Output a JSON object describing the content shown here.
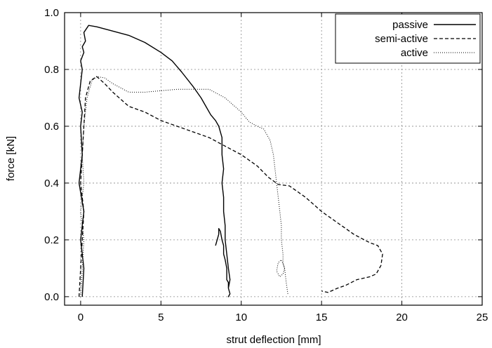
{
  "chart_data": {
    "type": "line",
    "title": "",
    "xlabel": "strut deflection [mm]",
    "ylabel": "force [kN]",
    "xlim": [
      -1,
      25
    ],
    "ylim": [
      -0.03,
      1.0
    ],
    "xticks": [
      0,
      5,
      10,
      15,
      20,
      25
    ],
    "yticks": [
      0.0,
      0.2,
      0.4,
      0.6,
      0.8,
      1.0
    ],
    "ytick_labels": [
      "0.0",
      "0.2",
      "0.4",
      "0.6",
      "0.8",
      "1.0"
    ],
    "grid": true,
    "legend_position": "top-right",
    "series": [
      {
        "name": "passive",
        "style": "solid",
        "x": [
          0.1,
          0.2,
          0.0,
          0.2,
          -0.1,
          0.1,
          0.0,
          0.1,
          -0.1,
          0.0,
          0.1,
          0.0,
          0.2,
          0.1,
          0.3,
          0.2,
          0.5,
          1.0,
          2.0,
          3.0,
          4.0,
          5.0,
          5.7,
          6.3,
          7.0,
          7.5,
          7.8,
          8.1,
          8.4,
          8.6,
          8.8,
          8.8,
          8.9,
          8.8,
          8.9,
          8.9,
          9.0,
          9.0,
          9.1,
          9.2,
          9.3,
          9.2,
          9.3,
          9.2,
          9.3,
          9.2,
          9.2,
          9.1,
          9.1,
          9.0,
          8.9,
          8.9,
          8.8,
          8.7,
          8.6,
          8.6,
          8.5,
          8.4
        ],
        "y": [
          0.0,
          0.1,
          0.2,
          0.3,
          0.4,
          0.5,
          0.6,
          0.65,
          0.7,
          0.75,
          0.8,
          0.83,
          0.86,
          0.88,
          0.9,
          0.93,
          0.955,
          0.95,
          0.935,
          0.92,
          0.895,
          0.86,
          0.83,
          0.79,
          0.74,
          0.7,
          0.67,
          0.64,
          0.62,
          0.6,
          0.56,
          0.5,
          0.45,
          0.4,
          0.35,
          0.3,
          0.25,
          0.2,
          0.15,
          0.1,
          0.06,
          0.03,
          0.01,
          0.0,
          0.01,
          0.03,
          0.05,
          0.06,
          0.1,
          0.13,
          0.15,
          0.18,
          0.2,
          0.23,
          0.24,
          0.22,
          0.2,
          0.18
        ]
      },
      {
        "name": "semi-active",
        "style": "dashed",
        "x": [
          -0.1,
          0.0,
          0.1,
          0.2,
          0.0,
          0.1,
          0.2,
          0.3,
          0.6,
          1.0,
          1.5,
          2.0,
          3.0,
          4.0,
          5.0,
          6.0,
          7.0,
          8.0,
          9.0,
          10.0,
          11.0,
          11.7,
          12.3,
          13.0,
          14.0,
          15.0,
          16.0,
          16.5,
          17.0,
          17.5,
          18.0,
          18.5,
          18.8,
          18.7,
          18.4,
          18.0,
          17.2,
          16.5,
          16.0,
          15.4,
          15.0
        ],
        "y": [
          0.0,
          0.1,
          0.2,
          0.3,
          0.4,
          0.5,
          0.6,
          0.7,
          0.76,
          0.775,
          0.75,
          0.72,
          0.67,
          0.65,
          0.62,
          0.6,
          0.58,
          0.56,
          0.53,
          0.5,
          0.46,
          0.42,
          0.395,
          0.39,
          0.35,
          0.3,
          0.26,
          0.24,
          0.22,
          0.205,
          0.19,
          0.18,
          0.15,
          0.11,
          0.08,
          0.07,
          0.06,
          0.04,
          0.03,
          0.015,
          0.02
        ]
      },
      {
        "name": "active",
        "style": "dotted",
        "x": [
          0.0,
          0.1,
          0.2,
          0.0,
          0.2,
          0.1,
          0.2,
          0.4,
          0.7,
          1.0,
          1.5,
          2.0,
          3.0,
          4.0,
          5.0,
          6.0,
          7.0,
          8.0,
          9.0,
          10.0,
          10.5,
          11.0,
          11.4,
          11.8,
          12.0,
          12.1,
          12.2,
          12.3,
          12.4,
          12.5,
          12.5,
          12.6,
          12.6,
          12.7,
          12.6,
          12.4,
          12.2,
          12.3,
          12.5,
          12.7,
          12.8,
          12.9
        ],
        "y": [
          0.0,
          0.1,
          0.2,
          0.3,
          0.4,
          0.5,
          0.6,
          0.7,
          0.76,
          0.775,
          0.77,
          0.75,
          0.72,
          0.72,
          0.725,
          0.73,
          0.73,
          0.73,
          0.7,
          0.65,
          0.615,
          0.6,
          0.59,
          0.55,
          0.5,
          0.45,
          0.4,
          0.35,
          0.3,
          0.25,
          0.2,
          0.15,
          0.12,
          0.1,
          0.08,
          0.07,
          0.09,
          0.12,
          0.13,
          0.1,
          0.05,
          0.01
        ]
      }
    ]
  }
}
